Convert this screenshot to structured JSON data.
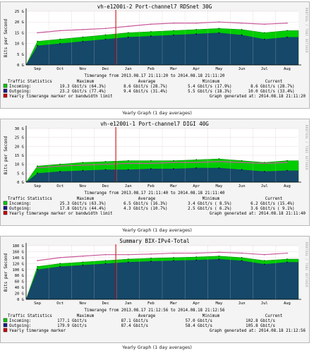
{
  "colors": {
    "incoming": "#00cc00",
    "outgoing": "#1c1c8c",
    "limit": "#c85a9c",
    "marker": "#cc0000",
    "grid": "#d9b9b9"
  },
  "graphs": [
    {
      "title": "vh-e1200i-2 Port-channel7 RDSnet 30G",
      "ylabel": "Bits per Second",
      "side_credit": "RRDTOOL / TOBI OETIKER",
      "scale_unit": "G",
      "timerange": "Timerange from 2013.08.17 21:11:20 to 2014.08.18 21:11:20",
      "columns": [
        "Traffic Statistics",
        "Maximum",
        "Average",
        "Minimum",
        "Current"
      ],
      "rows": [
        {
          "name": "Incoming:",
          "max": "19.3 Gbit/s",
          "max_pct": "(64.3%)",
          "avg": "8.6 Gbit/s",
          "avg_pct": "(28.7%)",
          "min": "5.4 Gbit/s",
          "min_pct": "(17.9%)",
          "cur": "8.6 Gbit/s",
          "cur_pct": "(28.7%)"
        },
        {
          "name": "Outgoing:",
          "max": "23.2 Gbit/s",
          "max_pct": "(77.4%)",
          "avg": "9.4 Gbit/s",
          "avg_pct": "(31.4%)",
          "min": "5.5 Gbit/s",
          "min_pct": "(18.3%)",
          "cur": "10.0 Gbit/s",
          "cur_pct": "(33.4%)"
        }
      ],
      "legend_limit": "Yearly timerange marker or bandwidth limit",
      "generated": "Graph generated at: 2014.08.18 21:11:20",
      "caption": "Yearly Graph (1 day averages)"
    },
    {
      "title": "vh-e1200i-1 Port-channel7 DIGI 40G",
      "ylabel": "Bits per Second",
      "side_credit": "RRDTOOL / TOBI OETIKER",
      "scale_unit": "G",
      "timerange": "Timerange from 2013.08.17 21:11:40 to 2014.08.18 21:11:40",
      "columns": [
        "Traffic Statistics",
        "Maximum",
        "Average",
        "Minimum",
        "Current"
      ],
      "rows": [
        {
          "name": "Incoming:",
          "max": "25.3 Gbit/s",
          "max_pct": "(63.3%)",
          "avg": "6.5 Gbit/s",
          "avg_pct": "(16.3%)",
          "min": "3.4 Gbit/s",
          "min_pct": "( 8.5%)",
          "cur": "6.2 Gbit/s",
          "cur_pct": "(15.4%)"
        },
        {
          "name": "Outgoing:",
          "max": "17.8 Gbit/s",
          "max_pct": "(44.4%)",
          "avg": "4.3 Gbit/s",
          "avg_pct": "(10.7%)",
          "min": "2.5 Gbit/s",
          "min_pct": "( 6.2%)",
          "cur": "3.6 Gbit/s",
          "cur_pct": "( 9.1%)"
        }
      ],
      "legend_limit": "Yearly timerange marker or bandwidth limit",
      "generated": "Graph generated at: 2014.08.18 21:11:40",
      "caption": "Yearly Graph (1 day averages)"
    },
    {
      "title": "Summary BIX-IPv4-Total",
      "ylabel": "Bits per Second",
      "side_credit": "RRDTOOL / TOBI OETIKER",
      "scale_unit": "G",
      "timerange": "Timerange from 2013.08.17 21:12:56 to 2014.08.18 21:12:56",
      "columns": [
        "Traffic Statistics",
        "Maximum",
        "Average",
        "Minimum",
        "Current"
      ],
      "rows": [
        {
          "name": "Incoming:",
          "max": "177.1 Gbit/s",
          "max_pct": "",
          "avg": "87.1 Gbit/s",
          "avg_pct": "",
          "min": "57.0 Gbit/s",
          "min_pct": "",
          "cur": "102.8 Gbit/s",
          "cur_pct": ""
        },
        {
          "name": "Outgoing:",
          "max": "179.9 Gbit/s",
          "max_pct": "",
          "avg": "87.4 Gbit/s",
          "avg_pct": "",
          "min": "58.4 Gbit/s",
          "min_pct": "",
          "cur": "105.8 Gbit/s",
          "cur_pct": ""
        }
      ],
      "legend_limit": "Yearly timerange marker",
      "generated": "Graph generated at: 2014.08.18 21:12:56",
      "caption": "Yearly Graph (1 day averages)"
    }
  ],
  "chart_data": [
    {
      "type": "area",
      "title": "vh-e1200i-2 Port-channel7 RDSnet 30G",
      "xlabel": "",
      "ylabel": "Bits per Second",
      "x": [
        "Sep",
        "Oct",
        "Nov",
        "Dec",
        "Jan",
        "Feb",
        "Mar",
        "Apr",
        "May",
        "Jun",
        "Jul",
        "Aug"
      ],
      "ylim": [
        0,
        25
      ],
      "yticks": [
        0,
        5,
        10,
        15,
        20,
        25
      ],
      "grid": true,
      "marker_at": "Dec",
      "series": [
        {
          "name": "Incoming",
          "values": [
            11,
            12,
            13,
            14,
            15,
            15.5,
            16,
            16.5,
            17,
            16.5,
            15,
            16
          ]
        },
        {
          "name": "Outgoing",
          "values": [
            9,
            10,
            11,
            12,
            13,
            13.5,
            14,
            14.5,
            15,
            14,
            12,
            13
          ]
        },
        {
          "name": "Yearly timerange marker or bandwidth limit",
          "values": [
            15,
            16,
            16.5,
            17,
            18,
            19,
            19.5,
            19.5,
            20,
            19.5,
            19,
            19.5
          ]
        }
      ]
    },
    {
      "type": "area",
      "title": "vh-e1200i-1 Port-channel7 DIGI 40G",
      "xlabel": "",
      "ylabel": "Bits per Second",
      "x": [
        "Sep",
        "Oct",
        "Nov",
        "Dec",
        "Jan",
        "Feb",
        "Mar",
        "Apr",
        "May",
        "Jun",
        "Jul",
        "Aug"
      ],
      "ylim": [
        0,
        30
      ],
      "yticks": [
        0,
        5,
        10,
        15,
        20,
        25,
        30
      ],
      "grid": true,
      "marker_at": "Dec",
      "series": [
        {
          "name": "Incoming",
          "values": [
            9,
            10,
            11,
            11.5,
            12,
            12,
            12,
            12.5,
            13,
            12,
            11,
            12
          ]
        },
        {
          "name": "Outgoing",
          "values": [
            5,
            6,
            6.5,
            7,
            7,
            7.5,
            7.5,
            8,
            8,
            7,
            6,
            6.5
          ]
        },
        {
          "name": "Yearly timerange marker or bandwidth limit",
          "values": [
            8,
            9,
            9.5,
            10,
            10.5,
            10.5,
            11,
            11,
            11.5,
            11,
            10.5,
            11
          ]
        }
      ]
    },
    {
      "type": "area",
      "title": "Summary BIX-IPv4-Total",
      "xlabel": "",
      "ylabel": "Bits per Second",
      "x": [
        "Sep",
        "Oct",
        "Nov",
        "Dec",
        "Jan",
        "Feb",
        "Mar",
        "Apr",
        "May",
        "Jun",
        "Jul",
        "Aug"
      ],
      "ylim": [
        0,
        180
      ],
      "yticks": [
        0,
        20,
        40,
        60,
        80,
        100,
        120,
        140,
        160,
        180
      ],
      "grid": true,
      "marker_at": "Dec",
      "series": [
        {
          "name": "Incoming",
          "values": [
            110,
            120,
            125,
            130,
            135,
            138,
            140,
            142,
            145,
            140,
            130,
            135
          ]
        },
        {
          "name": "Outgoing",
          "values": [
            100,
            110,
            115,
            120,
            125,
            128,
            130,
            132,
            135,
            130,
            118,
            125
          ]
        },
        {
          "name": "Yearly timerange marker",
          "values": [
            130,
            140,
            145,
            150,
            150,
            152,
            155,
            155,
            158,
            155,
            150,
            155
          ]
        }
      ]
    }
  ]
}
